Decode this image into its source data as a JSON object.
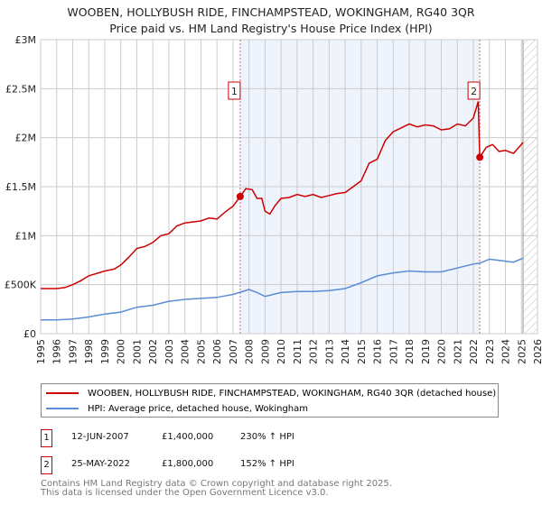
{
  "title_line1": "WOOBEN, HOLLYBUSH RIDE, FINCHAMPSTEAD, WOKINGHAM, RG40 3QR",
  "title_line2": "Price paid vs. HM Land Registry's House Price Index (HPI)",
  "chart_data": {
    "type": "line",
    "title": "WOOBEN, HOLLYBUSH RIDE, FINCHAMPSTEAD, WOKINGHAM, RG40 3QR — Price paid vs. HM Land Registry's House Price Index (HPI)",
    "xlim": [
      1995,
      2026
    ],
    "ylim": [
      0,
      3000000
    ],
    "x_ticks": [
      "1995",
      "1996",
      "1997",
      "1998",
      "1999",
      "2000",
      "2001",
      "2002",
      "2003",
      "2004",
      "2005",
      "2006",
      "2007",
      "2008",
      "2009",
      "2010",
      "2011",
      "2012",
      "2013",
      "2014",
      "2015",
      "2016",
      "2017",
      "2018",
      "2019",
      "2020",
      "2021",
      "2022",
      "2023",
      "2024",
      "2025",
      "2026"
    ],
    "y_ticks": [
      {
        "v": 0,
        "label": "£0"
      },
      {
        "v": 500000,
        "label": "£500K"
      },
      {
        "v": 1000000,
        "label": "£1M"
      },
      {
        "v": 1500000,
        "label": "£1.5M"
      },
      {
        "v": 2000000,
        "label": "£2M"
      },
      {
        "v": 2500000,
        "label": "£2.5M"
      },
      {
        "v": 3000000,
        "label": "£3M"
      }
    ],
    "grid": true,
    "shaded_period": [
      2007.45,
      2022.4
    ],
    "forecast_hatch_from": 2025.1,
    "series": [
      {
        "name": "WOOBEN, HOLLYBUSH RIDE, FINCHAMPSTEAD, WOKINGHAM, RG40 3QR (detached house)",
        "color": "#cc0000",
        "x": [
          1995,
          1996,
          1996.5,
          1997,
          1997.5,
          1998,
          1999,
          1999.6,
          2000,
          2000.5,
          2001,
          2001.5,
          2002,
          2002.5,
          2003,
          2003.5,
          2004,
          2004.5,
          2005,
          2005.5,
          2006,
          2006.5,
          2007,
          2007.45,
          2007.8,
          2008.2,
          2008.5,
          2008.8,
          2009,
          2009.3,
          2009.6,
          2010,
          2010.5,
          2011,
          2011.5,
          2012,
          2012.5,
          2013,
          2013.5,
          2014,
          2014.5,
          2015,
          2015.5,
          2016,
          2016.5,
          2017,
          2017.5,
          2018,
          2018.5,
          2019,
          2019.5,
          2020,
          2020.5,
          2021,
          2021.5,
          2022,
          2022.3,
          2022.4,
          2022.8,
          2023.2,
          2023.6,
          2024,
          2024.5,
          2025.1
        ],
        "y": [
          460000,
          460000,
          470000,
          500000,
          540000,
          590000,
          640000,
          660000,
          700000,
          780000,
          870000,
          890000,
          930000,
          1000000,
          1020000,
          1100000,
          1130000,
          1140000,
          1150000,
          1180000,
          1170000,
          1240000,
          1300000,
          1400000,
          1480000,
          1470000,
          1380000,
          1380000,
          1250000,
          1220000,
          1300000,
          1380000,
          1390000,
          1420000,
          1400000,
          1420000,
          1390000,
          1410000,
          1430000,
          1440000,
          1500000,
          1560000,
          1740000,
          1780000,
          1970000,
          2060000,
          2100000,
          2140000,
          2110000,
          2130000,
          2120000,
          2080000,
          2090000,
          2140000,
          2120000,
          2200000,
          2370000,
          1800000,
          1900000,
          1930000,
          1860000,
          1870000,
          1840000,
          1950000
        ]
      },
      {
        "name": "HPI: Average price, detached house, Wokingham",
        "color": "#5b8dd6",
        "x": [
          1995,
          1996,
          1997,
          1998,
          1999,
          2000,
          2001,
          2002,
          2003,
          2004,
          2005,
          2006,
          2007,
          2008,
          2008.5,
          2009,
          2009.5,
          2010,
          2011,
          2012,
          2013,
          2014,
          2015,
          2016,
          2017,
          2018,
          2019,
          2020,
          2021,
          2022,
          2022.4,
          2023,
          2023.5,
          2024,
          2024.5,
          2025.1
        ],
        "y": [
          140000,
          140000,
          150000,
          170000,
          200000,
          220000,
          270000,
          290000,
          330000,
          350000,
          360000,
          370000,
          400000,
          450000,
          420000,
          380000,
          400000,
          420000,
          430000,
          430000,
          440000,
          460000,
          520000,
          590000,
          620000,
          640000,
          630000,
          630000,
          670000,
          710000,
          720000,
          760000,
          750000,
          740000,
          730000,
          770000
        ]
      }
    ],
    "annotations": [
      {
        "label": "1",
        "x": 2007.45,
        "y": 1400000
      },
      {
        "label": "2",
        "x": 2022.4,
        "y": 1800000
      }
    ]
  },
  "legend": [
    {
      "label": "WOOBEN, HOLLYBUSH RIDE, FINCHAMPSTEAD, WOKINGHAM, RG40 3QR (detached house)",
      "color": "#cc0000"
    },
    {
      "label": "HPI: Average price, detached house, Wokingham",
      "color": "#5b8dd6"
    }
  ],
  "transactions": [
    {
      "num": "1",
      "date": "12-JUN-2007",
      "price": "£1,400,000",
      "hpi": "230% ↑ HPI"
    },
    {
      "num": "2",
      "date": "25-MAY-2022",
      "price": "£1,800,000",
      "hpi": "152% ↑ HPI"
    }
  ],
  "footer_line1": "Contains HM Land Registry data © Crown copyright and database right 2025.",
  "footer_line2": "This data is licensed under the Open Government Licence v3.0."
}
